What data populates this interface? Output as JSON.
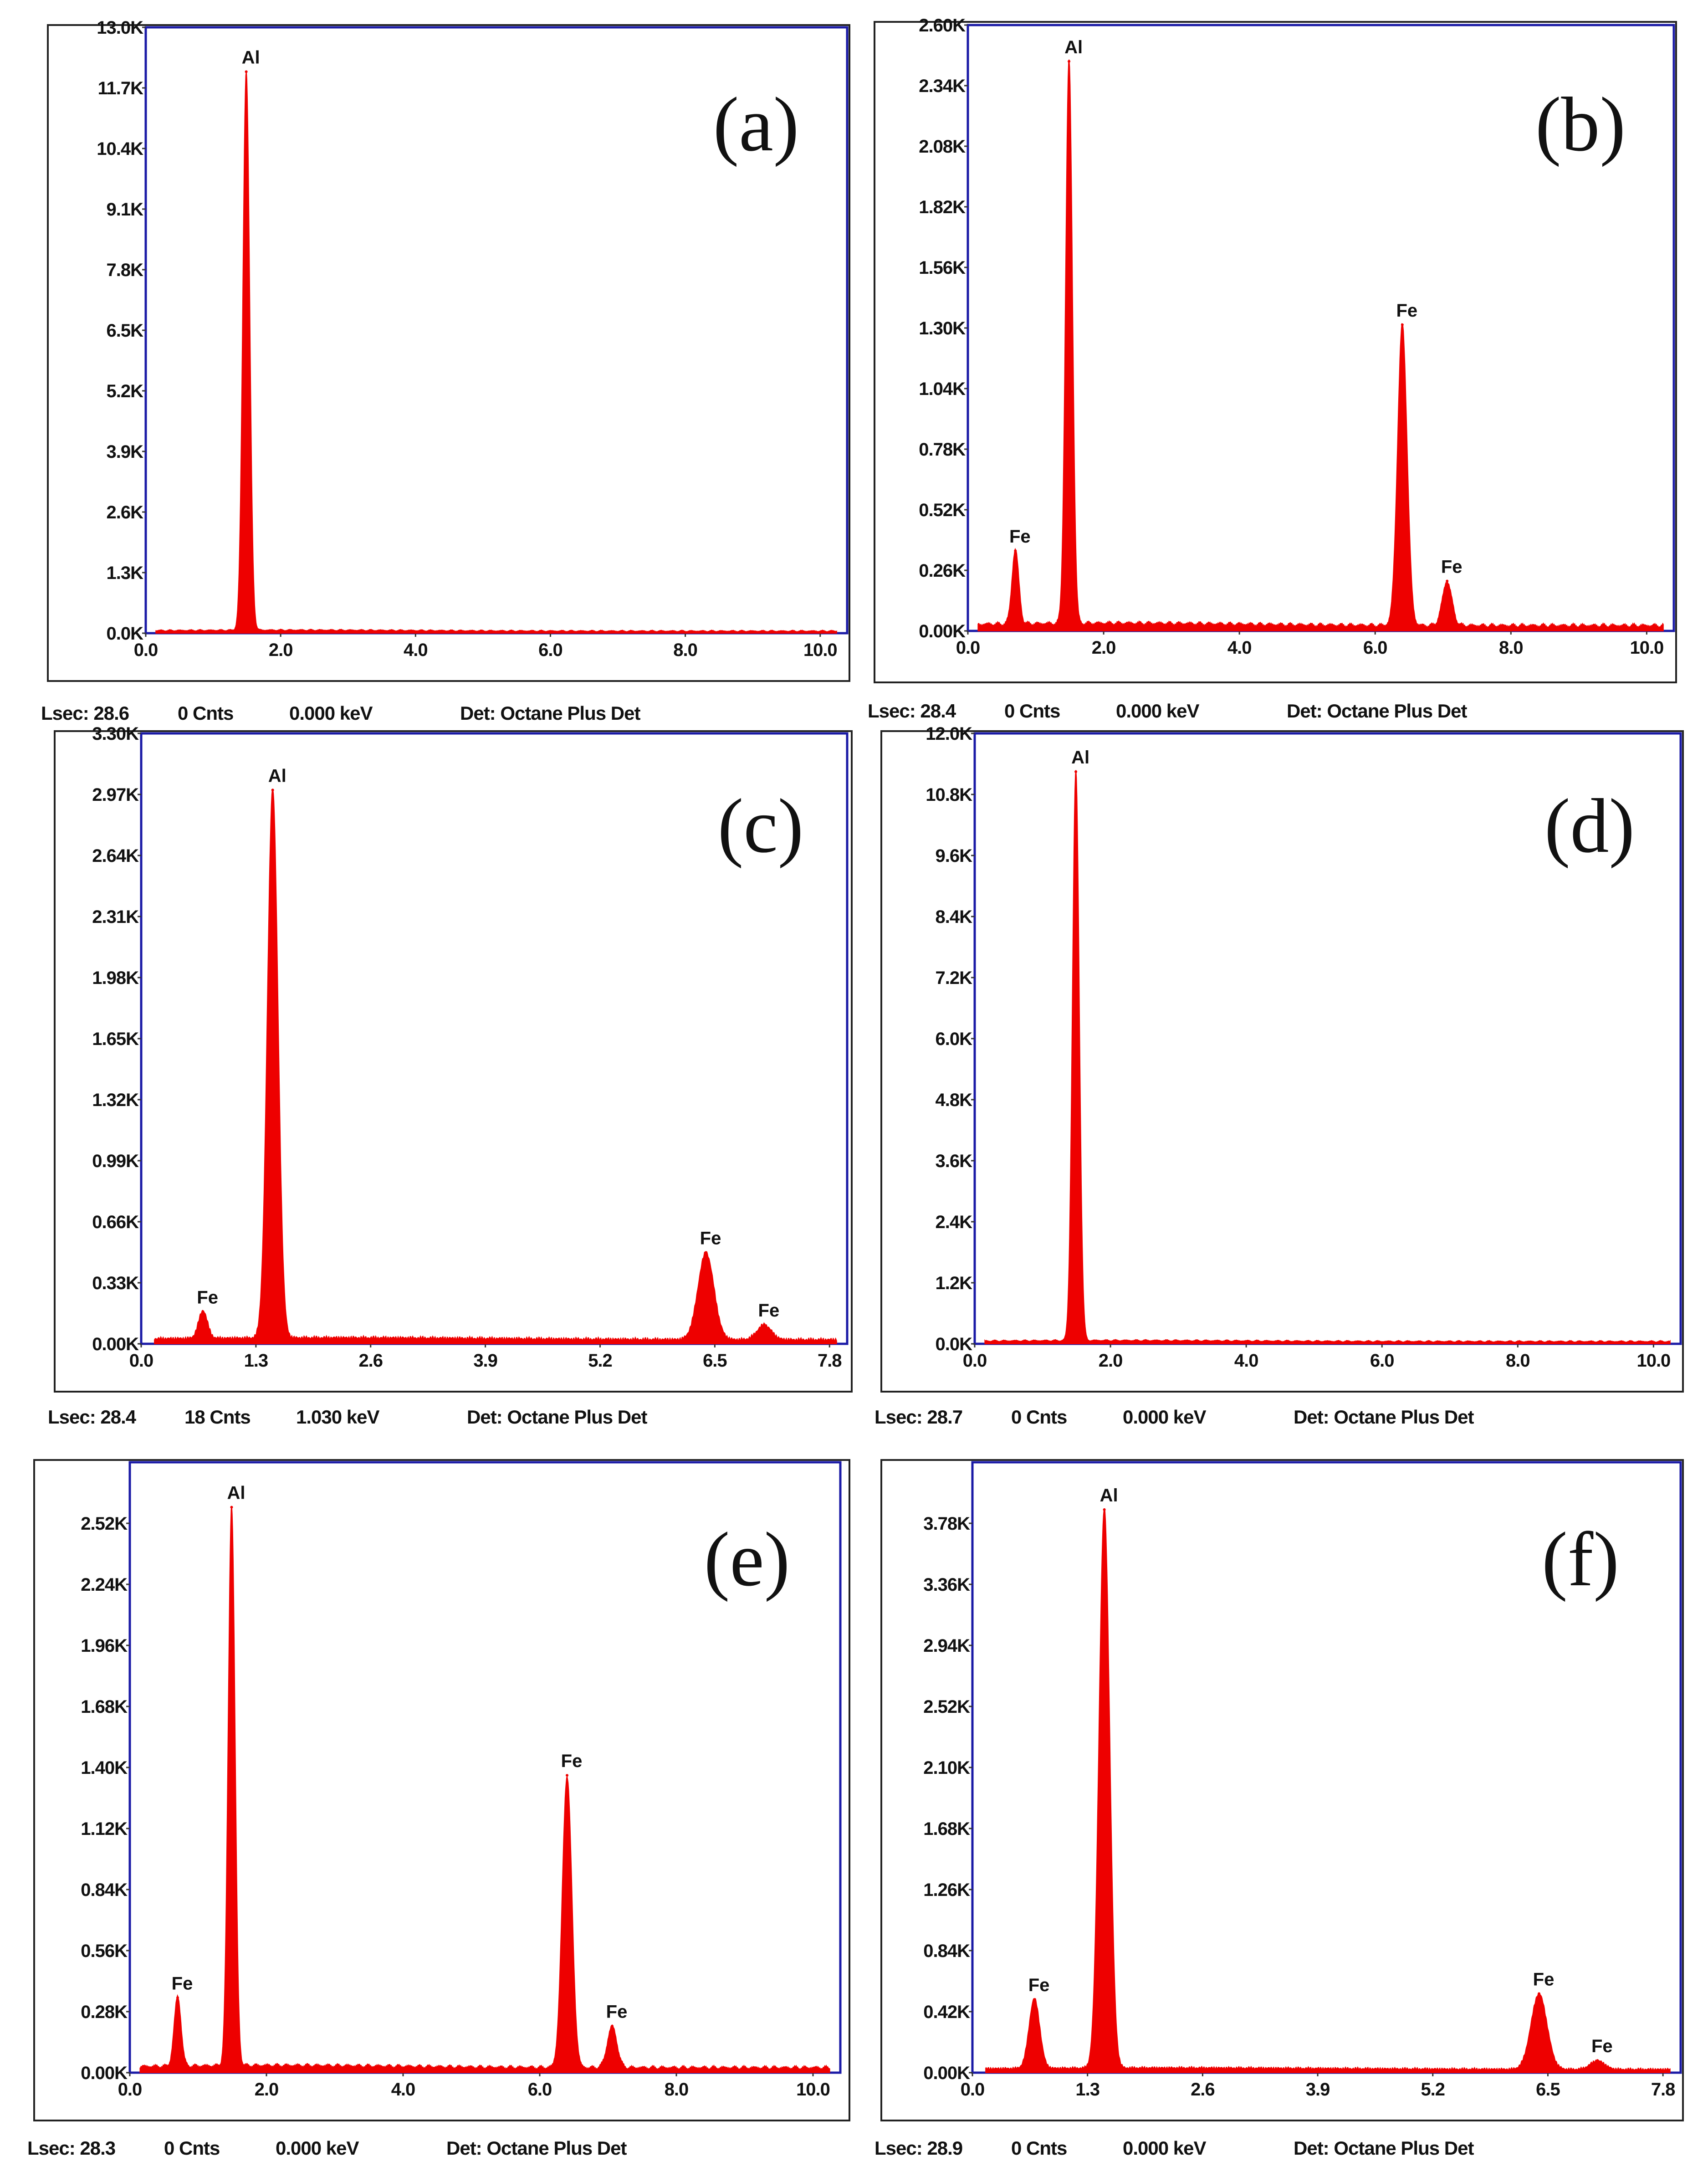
{
  "colors": {
    "spectrum": "#ee0000",
    "plot_frame": "#1a1aa6",
    "outer_frame": "#222222"
  },
  "chart_data": [
    {
      "type": "area",
      "panel_label": "(a)",
      "xlabel": "",
      "ylabel": "",
      "xlim": [
        0,
        10.4
      ],
      "ylim": [
        0,
        13000
      ],
      "x_ticks": [
        0,
        2,
        4,
        6,
        8,
        10
      ],
      "x_tick_labels": [
        "0.0",
        "2.0",
        "4.0",
        "6.0",
        "8.0",
        "10.0"
      ],
      "y_ticks": [
        0,
        1300,
        2600,
        3900,
        5200,
        6500,
        7800,
        9100,
        10400,
        11700,
        13000
      ],
      "y_tick_labels": [
        "0.0K",
        "1.3K",
        "2.6K",
        "3.9K",
        "5.2K",
        "6.5K",
        "7.8K",
        "9.1K",
        "10.4K",
        "11.7K",
        "13.0K"
      ],
      "baseline": 60,
      "peaks": [
        {
          "element": "Al",
          "energy_keV": 1.49,
          "counts": 12000,
          "width": 0.05
        }
      ],
      "status": {
        "lsec": "Lsec: 28.6",
        "cnts": "0 Cnts",
        "kev": "0.000 keV",
        "det": "Det: Octane Plus Det"
      }
    },
    {
      "type": "area",
      "panel_label": "(b)",
      "xlabel": "",
      "ylabel": "",
      "xlim": [
        0,
        10.4
      ],
      "ylim": [
        0,
        2600
      ],
      "x_ticks": [
        0,
        2,
        4,
        6,
        8,
        10
      ],
      "x_tick_labels": [
        "0.0",
        "2.0",
        "4.0",
        "6.0",
        "8.0",
        "10.0"
      ],
      "y_ticks": [
        0,
        260,
        520,
        780,
        1040,
        1300,
        1560,
        1820,
        2080,
        2340,
        2600
      ],
      "y_tick_labels": [
        "0.00K",
        "0.26K",
        "0.52K",
        "0.78K",
        "1.04K",
        "1.30K",
        "1.56K",
        "1.82K",
        "2.08K",
        "2.34K",
        "2.60K"
      ],
      "baseline": 30,
      "peaks": [
        {
          "element": "Fe",
          "energy_keV": 0.7,
          "counts": 320,
          "width": 0.05
        },
        {
          "element": "Al",
          "energy_keV": 1.49,
          "counts": 2420,
          "width": 0.05
        },
        {
          "element": "Fe",
          "energy_keV": 6.4,
          "counts": 1290,
          "width": 0.07
        },
        {
          "element": "Fe",
          "energy_keV": 7.06,
          "counts": 190,
          "width": 0.07
        }
      ],
      "status": {
        "lsec": "Lsec: 28.4",
        "cnts": "0 Cnts",
        "kev": "0.000 keV",
        "det": "Det: Octane Plus Det"
      }
    },
    {
      "type": "area",
      "panel_label": "(c)",
      "xlabel": "",
      "ylabel": "",
      "xlim": [
        0,
        8.0
      ],
      "ylim": [
        0,
        3300
      ],
      "x_ticks": [
        0,
        1.3,
        2.6,
        3.9,
        5.2,
        6.5,
        7.8
      ],
      "x_tick_labels": [
        "0.0",
        "1.3",
        "2.6",
        "3.9",
        "5.2",
        "6.5",
        "7.8"
      ],
      "y_ticks": [
        0,
        330,
        660,
        990,
        1320,
        1650,
        1980,
        2310,
        2640,
        2970,
        3300
      ],
      "y_tick_labels": [
        "0.00K",
        "0.33K",
        "0.66K",
        "0.99K",
        "1.32K",
        "1.65K",
        "1.98K",
        "2.31K",
        "2.64K",
        "2.97K",
        "3.30K"
      ],
      "baseline": 30,
      "peaks": [
        {
          "element": "Fe",
          "energy_keV": 0.7,
          "counts": 150,
          "width": 0.05
        },
        {
          "element": "Al",
          "energy_keV": 1.49,
          "counts": 2970,
          "width": 0.06
        },
        {
          "element": "Fe",
          "energy_keV": 6.4,
          "counts": 470,
          "width": 0.09
        },
        {
          "element": "Fe",
          "energy_keV": 7.06,
          "counts": 80,
          "width": 0.08
        }
      ],
      "status": {
        "lsec": "Lsec: 28.4",
        "cnts": "18 Cnts",
        "kev": "1.030 keV",
        "det": "Det: Octane Plus Det"
      }
    },
    {
      "type": "area",
      "panel_label": "(d)",
      "xlabel": "",
      "ylabel": "",
      "xlim": [
        0,
        10.4
      ],
      "ylim": [
        0,
        12000
      ],
      "x_ticks": [
        0,
        2,
        4,
        6,
        8,
        10
      ],
      "x_tick_labels": [
        "0.0",
        "2.0",
        "4.0",
        "6.0",
        "8.0",
        "10.0"
      ],
      "y_ticks": [
        0,
        1200,
        2400,
        3600,
        4800,
        6000,
        7200,
        8400,
        9600,
        10800,
        12000
      ],
      "y_tick_labels": [
        "0.0K",
        "1.2K",
        "2.4K",
        "3.6K",
        "4.8K",
        "6.0K",
        "7.2K",
        "8.4K",
        "9.6K",
        "10.8K",
        "12.0K"
      ],
      "baseline": 60,
      "peaks": [
        {
          "element": "Al",
          "energy_keV": 1.49,
          "counts": 11200,
          "width": 0.05
        }
      ],
      "status": {
        "lsec": "Lsec: 28.7",
        "cnts": "0 Cnts",
        "kev": "0.000 keV",
        "det": "Det: Octane Plus Det"
      }
    },
    {
      "type": "area",
      "panel_label": "(e)",
      "xlabel": "",
      "ylabel": "",
      "xlim": [
        0,
        10.4
      ],
      "ylim": [
        0,
        2800
      ],
      "x_ticks": [
        0,
        2,
        4,
        6,
        8,
        10
      ],
      "x_tick_labels": [
        "0.0",
        "2.0",
        "4.0",
        "6.0",
        "8.0",
        "10.0"
      ],
      "y_ticks": [
        0,
        280,
        560,
        840,
        1120,
        1400,
        1680,
        1960,
        2240,
        2520
      ],
      "y_tick_labels": [
        "0.00K",
        "0.28K",
        "0.56K",
        "0.84K",
        "1.12K",
        "1.40K",
        "1.68K",
        "1.96K",
        "2.24K",
        "2.52K"
      ],
      "baseline": 30,
      "peaks": [
        {
          "element": "Fe",
          "energy_keV": 0.7,
          "counts": 320,
          "width": 0.05
        },
        {
          "element": "Al",
          "energy_keV": 1.49,
          "counts": 2570,
          "width": 0.05
        },
        {
          "element": "Fe",
          "energy_keV": 6.4,
          "counts": 1340,
          "width": 0.07
        },
        {
          "element": "Fe",
          "energy_keV": 7.06,
          "counts": 190,
          "width": 0.07
        }
      ],
      "status": {
        "lsec": "Lsec: 28.3",
        "cnts": "0 Cnts",
        "kev": "0.000 keV",
        "det": "Det: Octane Plus Det"
      }
    },
    {
      "type": "area",
      "panel_label": "(f)",
      "xlabel": "",
      "ylabel": "",
      "xlim": [
        0,
        8.0
      ],
      "ylim": [
        0,
        4200
      ],
      "x_ticks": [
        0,
        1.3,
        2.6,
        3.9,
        5.2,
        6.5,
        7.8
      ],
      "x_tick_labels": [
        "0.0",
        "1.3",
        "2.6",
        "3.9",
        "5.2",
        "6.5",
        "7.8"
      ],
      "y_ticks": [
        0,
        420,
        840,
        1260,
        1680,
        2100,
        2520,
        2940,
        3360,
        3780
      ],
      "y_tick_labels": [
        "0.00K",
        "0.42K",
        "0.84K",
        "1.26K",
        "1.68K",
        "2.10K",
        "2.52K",
        "2.94K",
        "3.36K",
        "3.78K"
      ],
      "baseline": 30,
      "peaks": [
        {
          "element": "Fe",
          "energy_keV": 0.7,
          "counts": 480,
          "width": 0.06
        },
        {
          "element": "Al",
          "energy_keV": 1.49,
          "counts": 3850,
          "width": 0.06
        },
        {
          "element": "Fe",
          "energy_keV": 6.4,
          "counts": 520,
          "width": 0.09
        },
        {
          "element": "Fe",
          "energy_keV": 7.06,
          "counts": 60,
          "width": 0.08
        }
      ],
      "status": {
        "lsec": "Lsec: 28.9",
        "cnts": "0 Cnts",
        "kev": "0.000 keV",
        "det": "Det: Octane Plus Det"
      }
    }
  ]
}
